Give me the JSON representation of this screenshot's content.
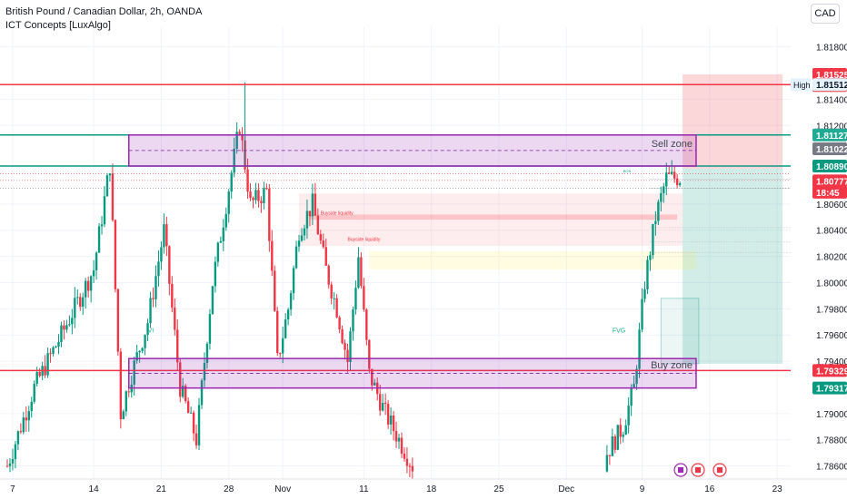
{
  "header": {
    "title": "British Pound / Canadian Dollar, 2h, OANDA",
    "indicator": "ICT Concepts [LuxAlgo]"
  },
  "currency_button": "CAD",
  "chart_data": {
    "type": "candlestick",
    "ylim": [
      1.785,
      1.8195
    ],
    "y_ticks": [
      "1.81800",
      "1.81400",
      "1.81200",
      "1.80600",
      "1.80400",
      "1.80200",
      "1.80000",
      "1.79800",
      "1.79600",
      "1.79400",
      "1.79000",
      "1.78800",
      "1.78600"
    ],
    "y_tick_values": [
      1.818,
      1.814,
      1.812,
      1.806,
      1.804,
      1.802,
      1.8,
      1.798,
      1.796,
      1.794,
      1.79,
      1.788,
      1.786
    ],
    "x_ticks": [
      {
        "label": "7",
        "idx": 2
      },
      {
        "label": "14",
        "idx": 32
      },
      {
        "label": "21",
        "idx": 57
      },
      {
        "label": "28",
        "idx": 82
      },
      {
        "label": "Nov",
        "idx": 102
      },
      {
        "label": "11",
        "idx": 132
      },
      {
        "label": "18",
        "idx": 157
      },
      {
        "label": "25",
        "idx": 182
      },
      {
        "label": "Dec",
        "idx": 207
      },
      {
        "label": "9",
        "idx": 235
      },
      {
        "label": "16",
        "idx": 260
      },
      {
        "label": "23",
        "idx": 285
      }
    ],
    "bars_total": 290,
    "candle_key": [
      [
        0,
        1.786
      ],
      [
        10,
        1.792
      ],
      [
        20,
        1.796
      ],
      [
        32,
        1.801
      ],
      [
        38,
        1.809
      ],
      [
        42,
        1.79
      ],
      [
        46,
        1.793
      ],
      [
        52,
        1.797
      ],
      [
        58,
        1.804
      ],
      [
        64,
        1.792
      ],
      [
        70,
        1.788
      ],
      [
        76,
        1.8
      ],
      [
        86,
        1.812
      ],
      [
        90,
        1.806
      ],
      [
        96,
        1.807
      ],
      [
        100,
        1.794
      ],
      [
        104,
        1.798
      ],
      [
        108,
        1.804
      ],
      [
        113,
        1.806
      ],
      [
        118,
        1.801
      ],
      [
        122,
        1.798
      ],
      [
        126,
        1.794
      ],
      [
        130,
        1.802
      ],
      [
        134,
        1.793
      ],
      [
        140,
        1.79
      ],
      [
        145,
        1.788
      ],
      [
        150,
        1.786
      ],
      [
        222,
        1.787
      ],
      [
        228,
        1.789
      ],
      [
        232,
        1.792
      ],
      [
        236,
        1.8
      ],
      [
        240,
        1.805
      ],
      [
        244,
        1.808
      ]
    ],
    "price_labels": [
      {
        "text": "1.81525",
        "price": 1.8159,
        "color": "#f23645",
        "kind": "red"
      },
      {
        "text": "1.81514",
        "price": 1.81505,
        "color": "#f23645",
        "kind": "red"
      },
      {
        "text": "1.81512",
        "price": 1.81512,
        "color": "#e3f2fd",
        "kind": "light",
        "tag": "High"
      },
      {
        "text": "1.81127",
        "price": 1.81127,
        "color": "#22ab94",
        "kind": "green"
      },
      {
        "text": "1.81022",
        "price": 1.81022,
        "color": "#787b86",
        "kind": "gray"
      },
      {
        "text": "1.80890",
        "price": 1.8089,
        "color": "#089981",
        "kind": "green"
      },
      {
        "text": "1.80777",
        "price": 1.80777,
        "color": "#f23645",
        "kind": "red"
      },
      {
        "text": "18:45",
        "price": 1.8069,
        "color": "#f23645",
        "kind": "red"
      },
      {
        "text": "1.79329",
        "price": 1.79329,
        "color": "#f23645",
        "kind": "red"
      },
      {
        "text": "1.79317",
        "price": 1.79195,
        "color": "#089981",
        "kind": "green"
      }
    ],
    "lines": [
      {
        "price": 1.81512,
        "color": "#f23645",
        "width": 1.5
      },
      {
        "price": 1.81127,
        "color": "#089981",
        "width": 1.5
      },
      {
        "price": 1.8089,
        "color": "#089981",
        "width": 1.5
      },
      {
        "price": 1.79329,
        "color": "#f23645",
        "width": 1.5
      }
    ],
    "zones": [
      {
        "label": "Sell zone",
        "top": 1.81127,
        "bottom": 1.8089,
        "from_idx": 45,
        "to_idx": 255
      },
      {
        "label": "Buy zone",
        "top": 1.7942,
        "bottom": 1.79195,
        "from_idx": 45,
        "to_idx": 255
      }
    ],
    "liquidity_labels": [
      {
        "text": "Buyside liquidity",
        "idx": 116,
        "price": 1.8052
      },
      {
        "text": "Buyside liquidity",
        "idx": 126,
        "price": 1.8032
      }
    ],
    "annotations": [
      {
        "text": "VI",
        "idx": 52,
        "price": 1.7962,
        "color": "#22ab94"
      },
      {
        "text": "FVG",
        "idx": 224,
        "price": 1.7962,
        "color": "#22ab94"
      },
      {
        "text": "BOS",
        "idx": 228,
        "price": 1.8084,
        "color": "#089981"
      }
    ]
  }
}
